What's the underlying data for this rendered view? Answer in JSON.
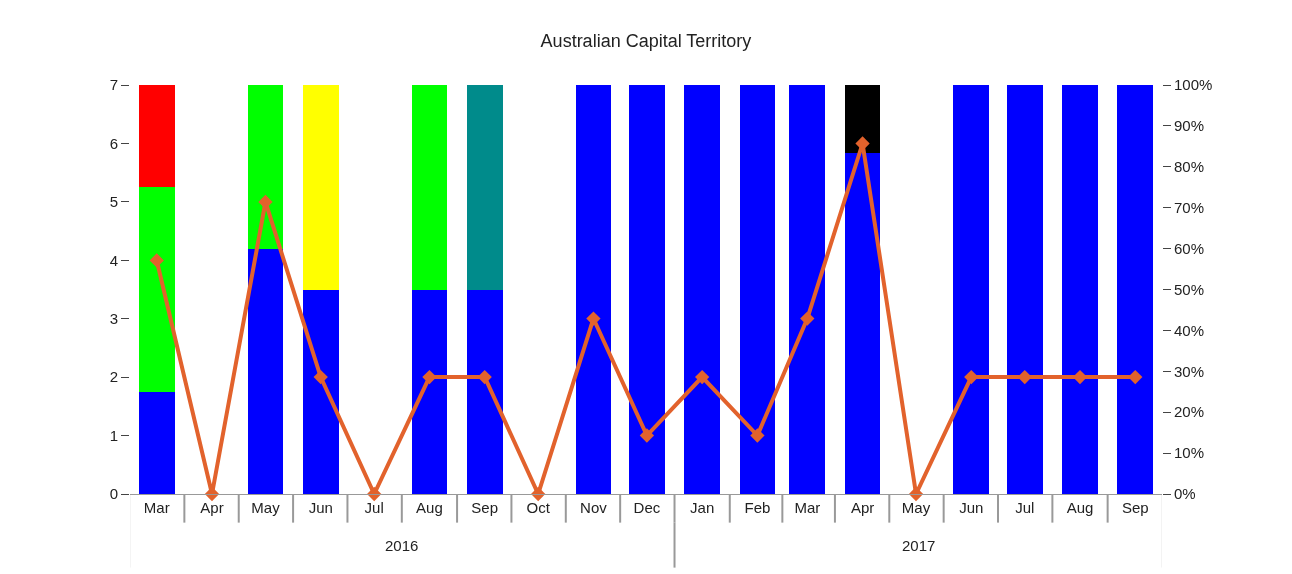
{
  "chart_data": {
    "type": "bar",
    "title": "Australian Capital Territory",
    "stacked": true,
    "x": [
      "2016-03",
      "2016-04",
      "2016-05",
      "2016-06",
      "2016-07",
      "2016-08",
      "2016-09",
      "2016-10",
      "2016-11",
      "2016-12",
      "2017-01",
      "2017-02",
      "2017-03",
      "2017-04",
      "2017-05",
      "2017-06",
      "2017-07",
      "2017-08",
      "2017-09"
    ],
    "series": [
      {
        "color": "#0000ff",
        "values": [
          1.75,
          0,
          4.2,
          3.5,
          0,
          3.5,
          3.5,
          0,
          7,
          7,
          7,
          7,
          7,
          5.83,
          0,
          7,
          7,
          7,
          7
        ]
      },
      {
        "color": "#00ff00",
        "values": [
          3.5,
          0,
          2.8,
          0,
          0,
          3.5,
          0,
          0,
          0,
          0,
          0,
          0,
          0,
          0,
          0,
          0,
          0,
          0,
          0
        ]
      },
      {
        "color": "#ff0000",
        "values": [
          1.75,
          0,
          0,
          0,
          0,
          0,
          0,
          0,
          0,
          0,
          0,
          0,
          0,
          0,
          0,
          0,
          0,
          0,
          0
        ]
      },
      {
        "color": "#ffff00",
        "values": [
          0,
          0,
          0,
          3.5,
          0,
          0,
          0,
          0,
          0,
          0,
          0,
          0,
          0,
          0,
          0,
          0,
          0,
          0,
          0
        ]
      },
      {
        "color": "#008b8b",
        "values": [
          0,
          0,
          0,
          0,
          0,
          0,
          3.5,
          0,
          0,
          0,
          0,
          0,
          0,
          0,
          0,
          0,
          0,
          0,
          0
        ]
      },
      {
        "color": "#000000",
        "values": [
          0,
          0,
          0,
          0,
          0,
          0,
          0,
          0,
          0,
          0,
          0,
          0,
          0,
          1.17,
          0,
          0,
          0,
          0,
          0
        ]
      },
      {
        "type": "line",
        "axis": "y2",
        "color": "#e2622c",
        "marker": "diamond",
        "values": [
          57.1,
          0,
          71.4,
          28.6,
          0,
          28.6,
          28.6,
          0,
          42.9,
          14.3,
          28.6,
          14.3,
          42.9,
          85.7,
          0,
          28.6,
          28.6,
          28.6,
          28.6
        ]
      }
    ],
    "xlim": [
      "2016-02-15",
      "2017-09-16"
    ],
    "xticks": [
      {
        "value": "2016-03",
        "label": "Mar"
      },
      {
        "value": "2016-04",
        "label": "Apr"
      },
      {
        "value": "2016-05",
        "label": "May"
      },
      {
        "value": "2016-06",
        "label": "Jun"
      },
      {
        "value": "2016-07",
        "label": "Jul"
      },
      {
        "value": "2016-08",
        "label": "Aug"
      },
      {
        "value": "2016-09",
        "label": "Sep"
      },
      {
        "value": "2016-10",
        "label": "Oct"
      },
      {
        "value": "2016-11",
        "label": "Nov"
      },
      {
        "value": "2016-12",
        "label": "Dec"
      },
      {
        "value": "2017-01",
        "label": "Jan"
      },
      {
        "value": "2017-02",
        "label": "Feb"
      },
      {
        "value": "2017-03",
        "label": "Mar"
      },
      {
        "value": "2017-04",
        "label": "Apr"
      },
      {
        "value": "2017-05",
        "label": "May"
      },
      {
        "value": "2017-06",
        "label": "Jun"
      },
      {
        "value": "2017-07",
        "label": "Jul"
      },
      {
        "value": "2017-08",
        "label": "Aug"
      },
      {
        "value": "2017-09",
        "label": "Sep"
      }
    ],
    "annotations": [
      "2016",
      "2017"
    ],
    "ylim": [
      0,
      7
    ],
    "yticks": [
      0,
      1,
      2,
      3,
      4,
      5,
      6,
      7
    ],
    "y2lim": [
      0,
      100
    ],
    "y2ticks": [
      {
        "value": 0,
        "label": "0%"
      },
      {
        "value": 10,
        "label": "10%"
      },
      {
        "value": 20,
        "label": "20%"
      },
      {
        "value": 30,
        "label": "30%"
      },
      {
        "value": 40,
        "label": "40%"
      },
      {
        "value": 50,
        "label": "50%"
      },
      {
        "value": 60,
        "label": "60%"
      },
      {
        "value": 70,
        "label": "70%"
      },
      {
        "value": 80,
        "label": "80%"
      },
      {
        "value": 90,
        "label": "90%"
      },
      {
        "value": 100,
        "label": "100%"
      }
    ]
  }
}
